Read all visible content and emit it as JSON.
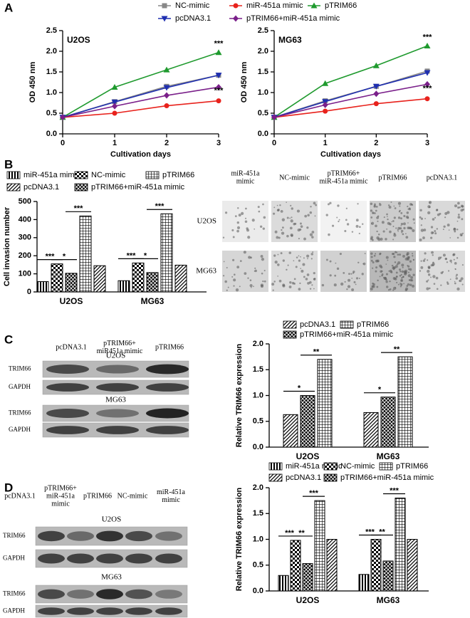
{
  "panels": [
    "A",
    "B",
    "C",
    "D"
  ],
  "chart_data": [
    {
      "type": "line",
      "title": "U2OS",
      "x_label": "Cultivation days",
      "y_label": "OD 450 nm",
      "x": [
        0,
        1,
        2,
        3
      ],
      "xlim": [
        0,
        3
      ],
      "xticks": [
        0,
        1,
        2,
        3
      ],
      "ylim": [
        0,
        2.5
      ],
      "yticks": [
        {
          "value": 0,
          "label": "0.0"
        },
        0.5,
        {
          "value": 1,
          "label": "1.0"
        },
        1.5,
        {
          "value": 2,
          "label": "2.0"
        },
        2.5
      ],
      "series": [
        {
          "name": "NC-mimic",
          "color": "#888888",
          "marker": "square",
          "values": [
            0.4,
            0.78,
            1.15,
            1.42
          ]
        },
        {
          "name": "miR-451a mimic",
          "color": "#e8221c",
          "marker": "circle",
          "values": [
            0.4,
            0.5,
            0.68,
            0.8
          ]
        },
        {
          "name": "pTRIM66",
          "color": "#1f9a2e",
          "marker": "triangle-up",
          "values": [
            0.4,
            1.13,
            1.55,
            1.97
          ]
        },
        {
          "name": "pcDNA3.1",
          "color": "#1f2fb0",
          "marker": "triangle-down",
          "values": [
            0.4,
            0.77,
            1.12,
            1.42
          ]
        },
        {
          "name": "pTRIM66+miR-451a mimic",
          "color": "#7a1f8a",
          "marker": "diamond",
          "values": [
            0.4,
            0.67,
            0.93,
            1.13
          ]
        }
      ],
      "annotations": [
        "***",
        "***"
      ]
    },
    {
      "type": "line",
      "title": "MG63",
      "x_label": "Cultivation days",
      "y_label": "OD 450 nm",
      "x": [
        0,
        1,
        2,
        3
      ],
      "xlim": [
        0,
        3
      ],
      "xticks": [
        0,
        1,
        2,
        3
      ],
      "ylim": [
        0,
        2.5
      ],
      "yticks": [
        {
          "value": 0,
          "label": "0.0"
        },
        0.5,
        {
          "value": 1,
          "label": "1.0"
        },
        1.5,
        {
          "value": 2,
          "label": "2.0"
        },
        2.5
      ],
      "series": [
        {
          "color": "#888888",
          "marker": "square",
          "values": [
            0.4,
            0.8,
            1.15,
            1.52
          ]
        },
        {
          "color": "#e8221c",
          "marker": "circle",
          "values": [
            0.4,
            0.55,
            0.73,
            0.85
          ]
        },
        {
          "color": "#1f9a2e",
          "marker": "triangle-up",
          "values": [
            0.4,
            1.22,
            1.65,
            2.13
          ]
        },
        {
          "color": "#1f2fb0",
          "marker": "triangle-down",
          "values": [
            0.4,
            0.78,
            1.15,
            1.48
          ]
        },
        {
          "color": "#7a1f8a",
          "marker": "diamond",
          "values": [
            0.4,
            0.7,
            0.97,
            1.2
          ]
        }
      ],
      "annotations": [
        "***",
        "***"
      ]
    },
    {
      "type": "bar",
      "y_label": "Cell invasion number",
      "categories": [
        "U2OS",
        "MG63"
      ],
      "ylim": [
        0,
        500
      ],
      "yticks": [
        0,
        100,
        200,
        300,
        400,
        500
      ],
      "series": [
        {
          "name": "miR-451a mimic",
          "pattern": "vlines",
          "values": [
            57,
            62
          ]
        },
        {
          "name": "NC-mimic",
          "pattern": "checker",
          "values": [
            155,
            160
          ]
        },
        {
          "name": "pTRIM66",
          "pattern": "grid",
          "values": [
            420,
            432
          ]
        },
        {
          "name": "pcDNA3.1",
          "pattern": "diag",
          "values": [
            145,
            148
          ]
        },
        {
          "name": "pTRIM66+miR-451a mimic",
          "pattern": "cross",
          "values": [
            103,
            107
          ]
        }
      ],
      "annotations": [
        "***",
        "*",
        "***",
        "***",
        "*",
        "***"
      ]
    },
    {
      "type": "bar",
      "y_label": "Relative TRIM66 expression",
      "categories": [
        "U2OS",
        "MG63"
      ],
      "ylim": [
        0,
        2
      ],
      "yticks": [
        {
          "value": 0,
          "label": "0.0"
        },
        0.5,
        {
          "value": 1,
          "label": "1.0"
        },
        1.5,
        {
          "value": 2,
          "label": "2.0"
        }
      ],
      "series": [
        {
          "name": "pcDNA3.1",
          "pattern": "diag",
          "values": [
            0.63,
            0.67
          ]
        },
        {
          "name": "pTRIM66",
          "pattern": "grid",
          "values": [
            1.7,
            1.75
          ]
        },
        {
          "name": "pTRIM66+miR-451a mimic",
          "pattern": "cross",
          "values": [
            1.0,
            0.97
          ]
        }
      ],
      "annotations": [
        "*",
        "**",
        "*",
        "**"
      ]
    },
    {
      "type": "bar",
      "y_label": "Relative TRIM66 expression",
      "categories": [
        "U2OS",
        "MG63"
      ],
      "ylim": [
        0,
        2
      ],
      "yticks": [
        {
          "value": 0,
          "label": "0.0"
        },
        0.5,
        {
          "value": 1,
          "label": "1.0"
        },
        1.5,
        {
          "value": 2,
          "label": "2.0"
        }
      ],
      "series": [
        {
          "name": "miR-451a mimic",
          "pattern": "vlines",
          "values": [
            0.3,
            0.32
          ]
        },
        {
          "name": "NC-mimic",
          "pattern": "checker",
          "values": [
            0.98,
            1.0
          ]
        },
        {
          "name": "pTRIM66",
          "pattern": "grid",
          "values": [
            1.75,
            1.8
          ]
        },
        {
          "name": "pcDNA3.1",
          "pattern": "diag",
          "values": [
            1.0,
            1.0
          ]
        },
        {
          "name": "pTRIM66+miR-451a mimic",
          "pattern": "cross",
          "values": [
            0.53,
            0.58
          ]
        }
      ],
      "annotations": [
        "***",
        "**",
        "***",
        "***",
        "**",
        "***"
      ]
    }
  ],
  "micrographs": {
    "columns": [
      [
        "miR-451a",
        "mimic"
      ],
      [
        "NC-mimic"
      ],
      [
        "pTRIM66+",
        "miR-451a mimic"
      ],
      [
        "pTRIM66"
      ],
      [
        "pcDNA3.1"
      ]
    ],
    "rows": [
      "U2OS",
      "MG63"
    ]
  },
  "blot_c": {
    "columns": [
      [
        "pcDNA3.1"
      ],
      [
        "pTRIM66+",
        "miR451a mimic"
      ],
      [
        "pTRIM66"
      ]
    ],
    "groups": [
      "U2OS",
      "MG63"
    ],
    "rows": [
      "TRIM66",
      "GAPDH",
      "TRIM66",
      "GAPDH"
    ]
  },
  "blot_d": {
    "columns": [
      [
        "pcDNA3.1"
      ],
      [
        "pTRIM66+",
        "miR-451a",
        "mimic"
      ],
      [
        "pTRIM66"
      ],
      [
        "NC-mimic"
      ],
      [
        "miR-451a",
        "mimic"
      ]
    ],
    "groups": [
      "U2OS",
      "MG63"
    ],
    "rows": [
      "TRIM66",
      "GAPDH",
      "TRIM66",
      "GAPDH"
    ]
  }
}
